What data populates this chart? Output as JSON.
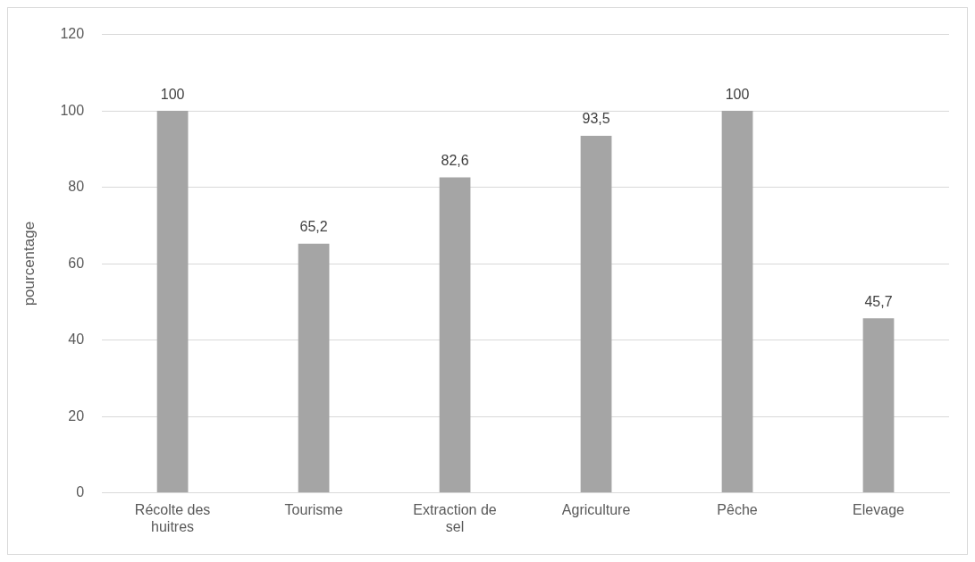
{
  "chart_data": {
    "type": "bar",
    "ylabel": "pourcentage",
    "categories": [
      "Récolte des huitres",
      "Tourisme",
      "Extraction de sel",
      "Agriculture",
      "Pêche",
      "Elevage"
    ],
    "values": [
      100,
      65.2,
      82.6,
      93.5,
      100,
      45.7
    ],
    "value_labels": [
      "100",
      "65,2",
      "82,6",
      "93,5",
      "100",
      "45,7"
    ],
    "color": "#a5a5a5",
    "ylim": [
      0,
      120
    ],
    "yticks": [
      0,
      20,
      40,
      60,
      80,
      100,
      120
    ],
    "grid": "y",
    "legend": false
  }
}
